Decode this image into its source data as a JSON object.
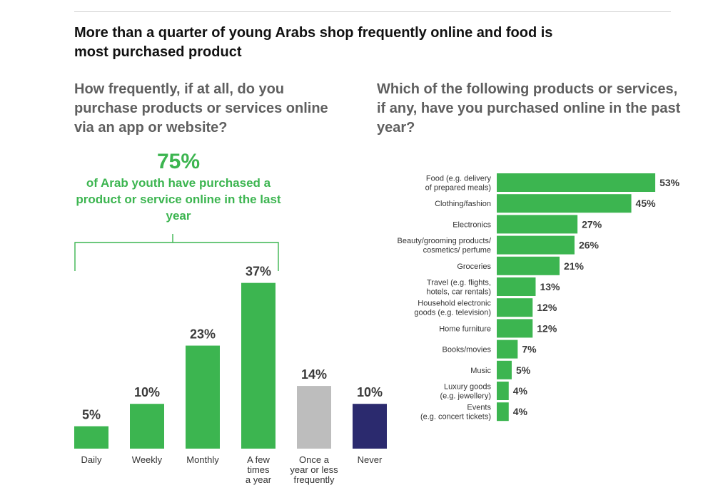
{
  "title": "More than a quarter of young Arabs shop frequently online and food is most purchased product",
  "left_question": "How frequently, if at all, do you purchase products or services online via an app or website?",
  "right_question": "Which of the following products or services, if any, have you purchased online in the past year?",
  "callout": {
    "value": "75%",
    "text": "of Arab youth have purchased a product or service online in the last year"
  },
  "colors": {
    "green": "#3cb550",
    "grey": "#bdbdbd",
    "navy": "#2b2a6e",
    "text_dark": "#3a3a3a"
  },
  "chart_data": [
    {
      "type": "bar",
      "orientation": "vertical",
      "categories": [
        [
          "Daily"
        ],
        [
          "Weekly"
        ],
        [
          "Monthly"
        ],
        [
          "A few",
          "times",
          "a year"
        ],
        [
          "Once a",
          "year or less",
          "frequently"
        ],
        [
          "Never"
        ]
      ],
      "values": [
        5,
        10,
        23,
        37,
        14,
        10
      ],
      "value_labels": [
        "5%",
        "10%",
        "23%",
        "37%",
        "14%",
        "10%"
      ],
      "bar_colors": [
        "#3cb550",
        "#3cb550",
        "#3cb550",
        "#3cb550",
        "#bdbdbd",
        "#2b2a6e"
      ],
      "unit": "%"
    },
    {
      "type": "bar",
      "orientation": "horizontal",
      "categories": [
        [
          "Food (e.g. delivery",
          "of prepared meals)"
        ],
        [
          "Clothing/fashion"
        ],
        [
          "Electronics"
        ],
        [
          "Beauty/grooming products/",
          "cosmetics/ perfume"
        ],
        [
          "Groceries"
        ],
        [
          "Travel (e.g. flights,",
          "hotels, car rentals)"
        ],
        [
          "Household electronic",
          "goods (e.g. television)"
        ],
        [
          "Home furniture"
        ],
        [
          "Books/movies"
        ],
        [
          "Music"
        ],
        [
          "Luxury goods",
          "(e.g. jewellery)"
        ],
        [
          "Events",
          "(e.g. concert tickets)"
        ]
      ],
      "values": [
        53,
        45,
        27,
        26,
        21,
        13,
        12,
        12,
        7,
        5,
        4,
        4
      ],
      "value_labels": [
        "53%",
        "45%",
        "27%",
        "26%",
        "21%",
        "13%",
        "12%",
        "12%",
        "7%",
        "5%",
        "4%",
        "4%"
      ],
      "bar_color": "#3cb550",
      "unit": "%"
    }
  ]
}
